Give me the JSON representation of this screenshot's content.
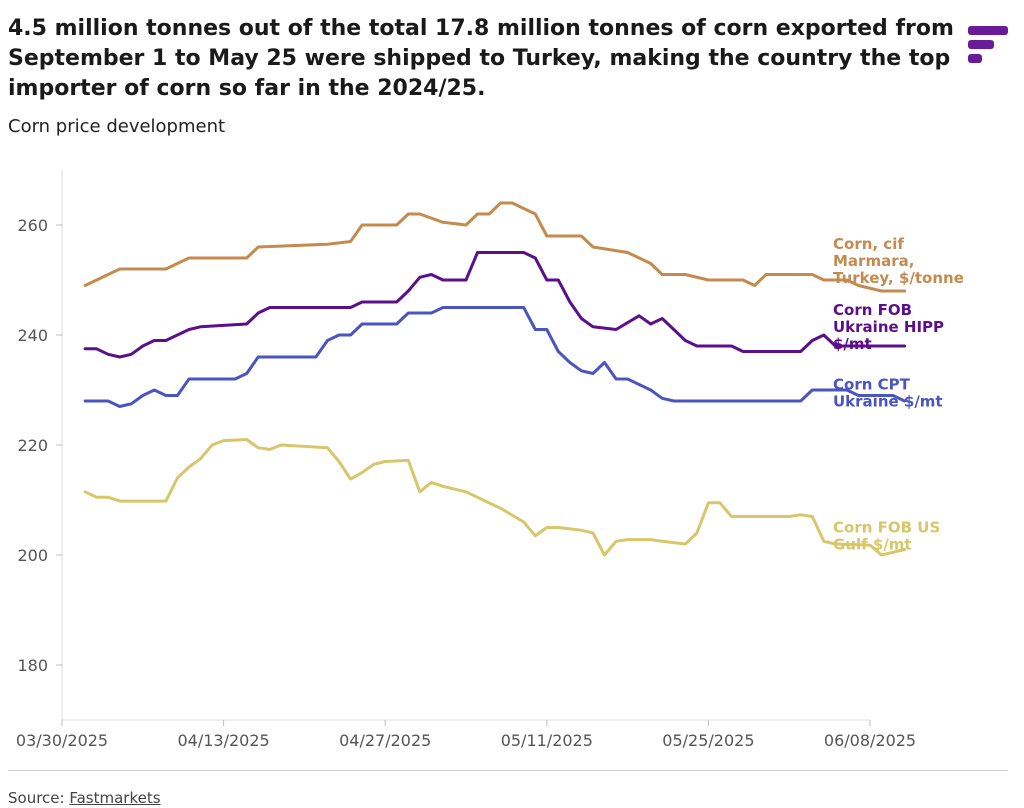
{
  "header": {
    "title": "4.5 million tonnes out of the total 17.8 million tonnes of corn exported from September 1 to May 25 were shipped to Turkey, making the country the top importer of corn so far in the 2024/25.",
    "subtitle": "Corn price development",
    "logo_icon": "fastmarkets-logo-icon",
    "logo_color": "#6a1b9a"
  },
  "footer": {
    "source_prefix": "Source: ",
    "source_link": "Fastmarkets"
  },
  "chart_data": {
    "type": "line",
    "title": "",
    "xlabel": "",
    "ylabel": "",
    "ylim": [
      170,
      270
    ],
    "xlim": [
      "2025-03-30",
      "2025-06-08"
    ],
    "y_ticks": [
      180,
      200,
      220,
      240,
      260
    ],
    "x_ticks": [
      "03/30/2025",
      "04/13/2025",
      "04/27/2025",
      "05/11/2025",
      "05/25/2025",
      "06/08/2025"
    ],
    "grid": "vertical-left-axis-only",
    "legend": "inline labels at right end of lines",
    "series": [
      {
        "name": "Corn, cif Marmara, Turkey, $/tonne",
        "label_lines": [
          "Corn, cif",
          "Marmara,",
          "Turkey, $/tonne"
        ],
        "color": "#c48a4f",
        "points": [
          [
            "2025-04-01",
            249
          ],
          [
            "2025-04-03",
            251
          ],
          [
            "2025-04-04",
            252
          ],
          [
            "2025-04-08",
            252
          ],
          [
            "2025-04-09",
            253
          ],
          [
            "2025-04-10",
            254
          ],
          [
            "2025-04-15",
            254
          ],
          [
            "2025-04-16",
            256
          ],
          [
            "2025-04-22",
            256.5
          ],
          [
            "2025-04-24",
            257
          ],
          [
            "2025-04-25",
            260
          ],
          [
            "2025-04-28",
            260
          ],
          [
            "2025-04-29",
            262
          ],
          [
            "2025-04-30",
            262
          ],
          [
            "2025-05-02",
            260.5
          ],
          [
            "2025-05-04",
            260
          ],
          [
            "2025-05-05",
            262
          ],
          [
            "2025-05-06",
            262
          ],
          [
            "2025-05-07",
            264
          ],
          [
            "2025-05-08",
            264
          ],
          [
            "2025-05-10",
            262
          ],
          [
            "2025-05-11",
            258
          ],
          [
            "2025-05-14",
            258
          ],
          [
            "2025-05-15",
            256
          ],
          [
            "2025-05-18",
            255
          ],
          [
            "2025-05-20",
            253
          ],
          [
            "2025-05-21",
            251
          ],
          [
            "2025-05-23",
            251
          ],
          [
            "2025-05-25",
            250
          ],
          [
            "2025-05-28",
            250
          ],
          [
            "2025-05-29",
            249
          ],
          [
            "2025-05-30",
            251
          ],
          [
            "2025-06-03",
            251
          ],
          [
            "2025-06-04",
            250
          ],
          [
            "2025-06-06",
            250
          ],
          [
            "2025-06-07",
            249
          ],
          [
            "2025-06-09",
            248
          ],
          [
            "2025-06-11",
            248
          ]
        ]
      },
      {
        "name": "Corn FOB Ukraine HIPP $/mt",
        "label_lines": [
          "Corn FOB",
          "Ukraine HIPP",
          "$/mt"
        ],
        "color": "#5c0f8b",
        "points": [
          [
            "2025-04-01",
            237.5
          ],
          [
            "2025-04-02",
            237.5
          ],
          [
            "2025-04-03",
            236.5
          ],
          [
            "2025-04-04",
            236
          ],
          [
            "2025-04-05",
            236.5
          ],
          [
            "2025-04-06",
            238
          ],
          [
            "2025-04-07",
            239
          ],
          [
            "2025-04-08",
            239
          ],
          [
            "2025-04-09",
            240
          ],
          [
            "2025-04-10",
            241
          ],
          [
            "2025-04-11",
            241.5
          ],
          [
            "2025-04-15",
            242
          ],
          [
            "2025-04-16",
            244
          ],
          [
            "2025-04-17",
            245
          ],
          [
            "2025-04-24",
            245
          ],
          [
            "2025-04-25",
            246
          ],
          [
            "2025-04-28",
            246
          ],
          [
            "2025-04-29",
            248
          ],
          [
            "2025-04-30",
            250.5
          ],
          [
            "2025-05-01",
            251
          ],
          [
            "2025-05-02",
            250
          ],
          [
            "2025-05-04",
            250
          ],
          [
            "2025-05-05",
            255
          ],
          [
            "2025-05-09",
            255
          ],
          [
            "2025-05-10",
            254
          ],
          [
            "2025-05-11",
            250
          ],
          [
            "2025-05-12",
            250
          ],
          [
            "2025-05-13",
            246
          ],
          [
            "2025-05-14",
            243
          ],
          [
            "2025-05-15",
            241.5
          ],
          [
            "2025-05-17",
            241
          ],
          [
            "2025-05-19",
            243.5
          ],
          [
            "2025-05-20",
            242
          ],
          [
            "2025-05-21",
            243
          ],
          [
            "2025-05-22",
            241
          ],
          [
            "2025-05-23",
            239
          ],
          [
            "2025-05-24",
            238
          ],
          [
            "2025-05-27",
            238
          ],
          [
            "2025-05-28",
            237
          ],
          [
            "2025-06-02",
            237
          ],
          [
            "2025-06-03",
            239
          ],
          [
            "2025-06-04",
            240
          ],
          [
            "2025-06-05",
            238
          ],
          [
            "2025-06-11",
            238
          ]
        ]
      },
      {
        "name": "Corn CPT Ukraine $/mt",
        "label_lines": [
          "Corn CPT",
          "Ukraine $/mt"
        ],
        "color": "#4a55c0",
        "points": [
          [
            "2025-04-01",
            228
          ],
          [
            "2025-04-03",
            228
          ],
          [
            "2025-04-04",
            227
          ],
          [
            "2025-04-05",
            227.5
          ],
          [
            "2025-04-06",
            229
          ],
          [
            "2025-04-07",
            230
          ],
          [
            "2025-04-08",
            229
          ],
          [
            "2025-04-09",
            229
          ],
          [
            "2025-04-10",
            232
          ],
          [
            "2025-04-14",
            232
          ],
          [
            "2025-04-15",
            233
          ],
          [
            "2025-04-16",
            236
          ],
          [
            "2025-04-21",
            236
          ],
          [
            "2025-04-22",
            239
          ],
          [
            "2025-04-23",
            240
          ],
          [
            "2025-04-24",
            240
          ],
          [
            "2025-04-25",
            242
          ],
          [
            "2025-04-28",
            242
          ],
          [
            "2025-04-29",
            244
          ],
          [
            "2025-05-01",
            244
          ],
          [
            "2025-05-02",
            245
          ],
          [
            "2025-05-09",
            245
          ],
          [
            "2025-05-10",
            241
          ],
          [
            "2025-05-11",
            241
          ],
          [
            "2025-05-12",
            237
          ],
          [
            "2025-05-13",
            235
          ],
          [
            "2025-05-14",
            233.5
          ],
          [
            "2025-05-15",
            233
          ],
          [
            "2025-05-16",
            235
          ],
          [
            "2025-05-17",
            232
          ],
          [
            "2025-05-18",
            232
          ],
          [
            "2025-05-19",
            231
          ],
          [
            "2025-05-20",
            230
          ],
          [
            "2025-05-21",
            228.5
          ],
          [
            "2025-05-22",
            228
          ],
          [
            "2025-06-02",
            228
          ],
          [
            "2025-06-03",
            230
          ],
          [
            "2025-06-06",
            230
          ],
          [
            "2025-06-07",
            229
          ],
          [
            "2025-06-10",
            229
          ],
          [
            "2025-06-11",
            228
          ]
        ]
      },
      {
        "name": "Corn FOB US Gulf $/mt",
        "label_lines": [
          "Corn FOB US",
          "Gulf $/mt"
        ],
        "color": "#d8c76a",
        "points": [
          [
            "2025-04-01",
            211.5
          ],
          [
            "2025-04-02",
            210.5
          ],
          [
            "2025-04-03",
            210.5
          ],
          [
            "2025-04-04",
            209.8
          ],
          [
            "2025-04-08",
            209.8
          ],
          [
            "2025-04-09",
            214
          ],
          [
            "2025-04-10",
            216
          ],
          [
            "2025-04-11",
            217.5
          ],
          [
            "2025-04-12",
            220
          ],
          [
            "2025-04-13",
            220.8
          ],
          [
            "2025-04-15",
            221
          ],
          [
            "2025-04-16",
            219.5
          ],
          [
            "2025-04-17",
            219.2
          ],
          [
            "2025-04-18",
            220
          ],
          [
            "2025-04-22",
            219.5
          ],
          [
            "2025-04-23",
            217
          ],
          [
            "2025-04-24",
            213.8
          ],
          [
            "2025-04-25",
            215
          ],
          [
            "2025-04-26",
            216.5
          ],
          [
            "2025-04-27",
            217
          ],
          [
            "2025-04-29",
            217.2
          ],
          [
            "2025-04-30",
            211.5
          ],
          [
            "2025-05-01",
            213.2
          ],
          [
            "2025-05-02",
            212.5
          ],
          [
            "2025-05-04",
            211.5
          ],
          [
            "2025-05-07",
            208.5
          ],
          [
            "2025-05-09",
            206
          ],
          [
            "2025-05-10",
            203.5
          ],
          [
            "2025-05-11",
            205
          ],
          [
            "2025-05-12",
            205
          ],
          [
            "2025-05-14",
            204.5
          ],
          [
            "2025-05-15",
            204
          ],
          [
            "2025-05-16",
            200
          ],
          [
            "2025-05-17",
            202.5
          ],
          [
            "2025-05-18",
            202.8
          ],
          [
            "2025-05-20",
            202.8
          ],
          [
            "2025-05-21",
            202.5
          ],
          [
            "2025-05-23",
            202
          ],
          [
            "2025-05-24",
            204
          ],
          [
            "2025-05-25",
            209.5
          ],
          [
            "2025-05-26",
            209.5
          ],
          [
            "2025-05-27",
            207
          ],
          [
            "2025-05-28",
            207
          ],
          [
            "2025-06-01",
            207
          ],
          [
            "2025-06-02",
            207.3
          ],
          [
            "2025-06-03",
            207
          ],
          [
            "2025-06-04",
            202.5
          ],
          [
            "2025-06-05",
            202
          ],
          [
            "2025-06-08",
            201.8
          ],
          [
            "2025-06-09",
            200
          ],
          [
            "2025-06-10",
            200.5
          ],
          [
            "2025-06-11",
            201
          ]
        ]
      }
    ]
  }
}
